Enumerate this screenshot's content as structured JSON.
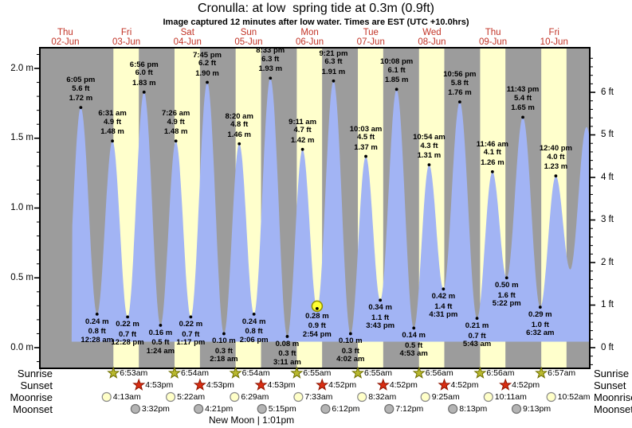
{
  "title": "Cronulla: at low  spring tide at 0.3m (0.9ft)",
  "subtitle": "Image captured 12 minutes after low water. Times are EST (UTC +10.0hrs)",
  "colors": {
    "night_band": "#9c9c9c",
    "daylight_band": "#ffffcc",
    "water_fill": "#a2b4f4",
    "date_text": "#c23326",
    "current_marker_fill": "#ffff33",
    "current_marker_stroke": "#8f8f00",
    "sunrise_star_fill": "#b9b92f",
    "sunrise_star_stroke": "#6e6e00",
    "sunset_star_fill": "#d92d12",
    "sunset_star_stroke": "#8e1500",
    "moonrise_circle_fill": "#ffffc8",
    "moonrise_circle_stroke": "#8a8a8a",
    "moonset_circle_fill": "#b4b4b4",
    "moonset_circle_stroke": "#6f6f6f"
  },
  "legend": {
    "sunrise": "Sunrise",
    "sunset": "Sunset",
    "moonrise": "Moonrise",
    "moonset": "Moonset",
    "new_moon": "New Moon | 1:01pm"
  },
  "chart_data": {
    "type": "area",
    "title": "Cronulla: at low  spring tide at 0.3m (0.9ft)",
    "ylabel_left_unit": "m",
    "ylabel_right_unit": "ft",
    "ylim_m": [
      -0.15,
      2.15
    ],
    "yticks_m": [
      2.0,
      1.5,
      1.0,
      0.5,
      0.0
    ],
    "yticks_ft": [
      6,
      5,
      4,
      3,
      2,
      1,
      0
    ],
    "grid": false,
    "days": [
      {
        "weekday": "Thu",
        "date": "02-Jun"
      },
      {
        "weekday": "Fri",
        "date": "03-Jun"
      },
      {
        "weekday": "Sat",
        "date": "04-Jun"
      },
      {
        "weekday": "Sun",
        "date": "05-Jun"
      },
      {
        "weekday": "Mon",
        "date": "06-Jun"
      },
      {
        "weekday": "Tue",
        "date": "07-Jun"
      },
      {
        "weekday": "Wed",
        "date": "08-Jun"
      },
      {
        "weekday": "Thu",
        "date": "09-Jun"
      },
      {
        "weekday": "Fri",
        "date": "10-Jun"
      }
    ],
    "tides": [
      {
        "day": 0,
        "time": "6:05 pm",
        "type": "high",
        "height_m": 1.72,
        "height_ft": 5.6
      },
      {
        "day": 1,
        "time": "12:28 am",
        "type": "low",
        "height_m": 0.24,
        "height_ft": 0.8
      },
      {
        "day": 1,
        "time": "6:31 am",
        "type": "high",
        "height_m": 1.48,
        "height_ft": 4.9
      },
      {
        "day": 1,
        "time": "12:28 pm",
        "type": "low",
        "height_m": 0.22,
        "height_ft": 0.7
      },
      {
        "day": 1,
        "time": "6:56 pm",
        "type": "high",
        "height_m": 1.83,
        "height_ft": 6.0
      },
      {
        "day": 2,
        "time": "1:24 am",
        "type": "low",
        "height_m": 0.16,
        "height_ft": 0.5
      },
      {
        "day": 2,
        "time": "7:26 am",
        "type": "high",
        "height_m": 1.48,
        "height_ft": 4.9
      },
      {
        "day": 2,
        "time": "1:17 pm",
        "type": "low",
        "height_m": 0.22,
        "height_ft": 0.7
      },
      {
        "day": 2,
        "time": "7:45 pm",
        "type": "high",
        "height_m": 1.9,
        "height_ft": 6.2
      },
      {
        "day": 3,
        "time": "2:18 am",
        "type": "low",
        "height_m": 0.1,
        "height_ft": 0.3
      },
      {
        "day": 3,
        "time": "8:20 am",
        "type": "high",
        "height_m": 1.46,
        "height_ft": 4.8
      },
      {
        "day": 3,
        "time": "2:06 pm",
        "type": "low",
        "height_m": 0.24,
        "height_ft": 0.8
      },
      {
        "day": 3,
        "time": "8:33 pm",
        "type": "high",
        "height_m": 1.93,
        "height_ft": 6.3
      },
      {
        "day": 4,
        "time": "3:11 am",
        "type": "low",
        "height_m": 0.08,
        "height_ft": 0.3
      },
      {
        "day": 4,
        "time": "9:11 am",
        "type": "high",
        "height_m": 1.42,
        "height_ft": 4.7
      },
      {
        "day": 4,
        "time": "2:54 pm",
        "type": "low",
        "height_m": 0.28,
        "height_ft": 0.9,
        "current": true
      },
      {
        "day": 4,
        "time": "9:21 pm",
        "type": "high",
        "height_m": 1.91,
        "height_ft": 6.3
      },
      {
        "day": 5,
        "time": "4:02 am",
        "type": "low",
        "height_m": 0.1,
        "height_ft": 0.3
      },
      {
        "day": 5,
        "time": "10:03 am",
        "type": "high",
        "height_m": 1.37,
        "height_ft": 4.5
      },
      {
        "day": 5,
        "time": "3:43 pm",
        "type": "low",
        "height_m": 0.34,
        "height_ft": 1.1
      },
      {
        "day": 5,
        "time": "10:08 pm",
        "type": "high",
        "height_m": 1.85,
        "height_ft": 6.1
      },
      {
        "day": 6,
        "time": "4:53 am",
        "type": "low",
        "height_m": 0.14,
        "height_ft": 0.5
      },
      {
        "day": 6,
        "time": "10:54 am",
        "type": "high",
        "height_m": 1.31,
        "height_ft": 4.3
      },
      {
        "day": 6,
        "time": "4:31 pm",
        "type": "low",
        "height_m": 0.42,
        "height_ft": 1.4
      },
      {
        "day": 6,
        "time": "10:56 pm",
        "type": "high",
        "height_m": 1.76,
        "height_ft": 5.8
      },
      {
        "day": 7,
        "time": "5:43 am",
        "type": "low",
        "height_m": 0.21,
        "height_ft": 0.7
      },
      {
        "day": 7,
        "time": "11:46 am",
        "type": "high",
        "height_m": 1.26,
        "height_ft": 4.1
      },
      {
        "day": 7,
        "time": "5:22 pm",
        "type": "low",
        "height_m": 0.5,
        "height_ft": 1.6
      },
      {
        "day": 7,
        "time": "11:43 pm",
        "type": "high",
        "height_m": 1.65,
        "height_ft": 5.4
      },
      {
        "day": 8,
        "time": "6:32 am",
        "type": "low",
        "height_m": 0.29,
        "height_ft": 1.0
      },
      {
        "day": 8,
        "time": "12:40 pm",
        "type": "high",
        "height_m": 1.23,
        "height_ft": 4.0
      }
    ],
    "sunrise": [
      {
        "day": 1,
        "time": "6:53am"
      },
      {
        "day": 2,
        "time": "6:54am"
      },
      {
        "day": 3,
        "time": "6:54am"
      },
      {
        "day": 4,
        "time": "6:55am"
      },
      {
        "day": 5,
        "time": "6:55am"
      },
      {
        "day": 6,
        "time": "6:56am"
      },
      {
        "day": 7,
        "time": "6:56am"
      },
      {
        "day": 8,
        "time": "6:57am"
      }
    ],
    "sunset": [
      {
        "day": 1,
        "time": "4:53pm"
      },
      {
        "day": 2,
        "time": "4:53pm"
      },
      {
        "day": 3,
        "time": "4:53pm"
      },
      {
        "day": 4,
        "time": "4:52pm"
      },
      {
        "day": 5,
        "time": "4:52pm"
      },
      {
        "day": 6,
        "time": "4:52pm"
      },
      {
        "day": 7,
        "time": "4:52pm"
      }
    ],
    "moonrise": [
      {
        "day": 1,
        "time": "4:13am"
      },
      {
        "day": 2,
        "time": "5:22am"
      },
      {
        "day": 3,
        "time": "6:29am"
      },
      {
        "day": 4,
        "time": "7:33am"
      },
      {
        "day": 5,
        "time": "8:32am"
      },
      {
        "day": 6,
        "time": "9:25am"
      },
      {
        "day": 7,
        "time": "10:11am"
      },
      {
        "day": 8,
        "time": "10:52am"
      }
    ],
    "moonset": [
      {
        "day": 1,
        "time": "3:32pm"
      },
      {
        "day": 2,
        "time": "4:21pm"
      },
      {
        "day": 3,
        "time": "5:15pm"
      },
      {
        "day": 4,
        "time": "6:12pm"
      },
      {
        "day": 5,
        "time": "7:12pm"
      },
      {
        "day": 6,
        "time": "8:13pm"
      },
      {
        "day": 7,
        "time": "9:13pm"
      }
    ]
  }
}
